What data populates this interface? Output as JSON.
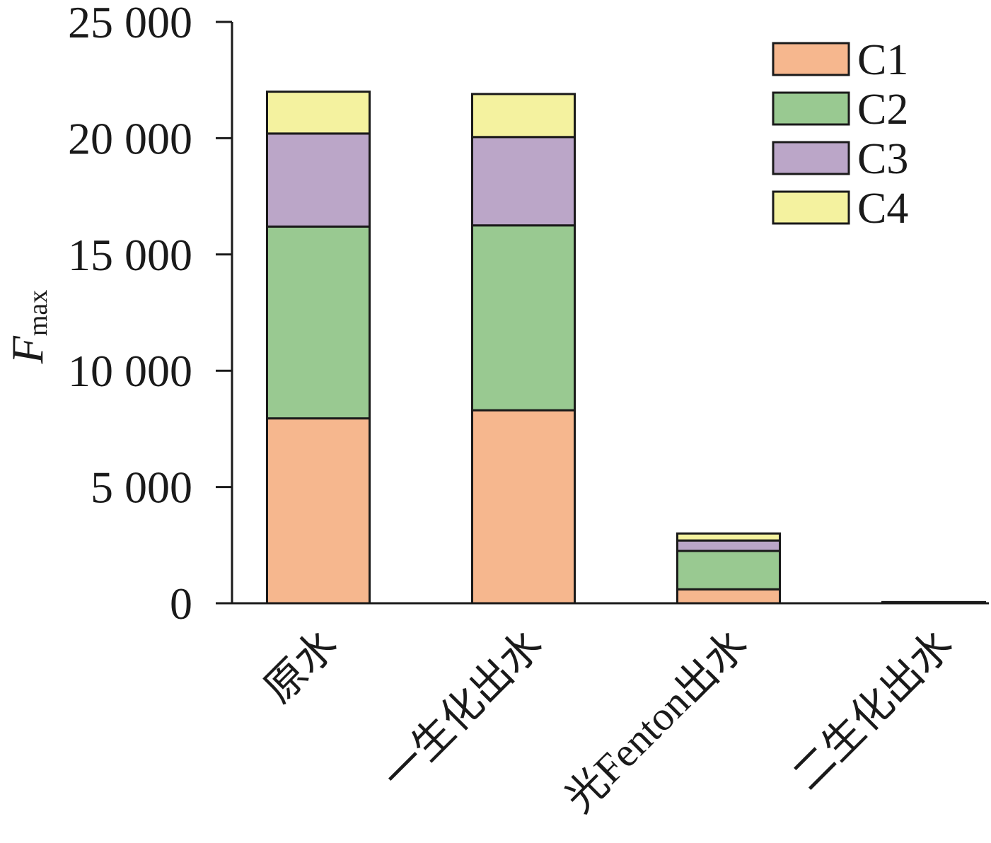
{
  "chart_data": {
    "type": "bar",
    "stacked": true,
    "categories": [
      "原水",
      "一生化出水",
      "光Fenton出水",
      "二生化出水"
    ],
    "series": [
      {
        "name": "C1",
        "color": "#F6B78E",
        "values": [
          7950,
          8300,
          600,
          20
        ]
      },
      {
        "name": "C2",
        "color": "#99C991",
        "values": [
          8250,
          7950,
          1650,
          15
        ]
      },
      {
        "name": "C3",
        "color": "#BBA6C8",
        "values": [
          4000,
          3800,
          450,
          10
        ]
      },
      {
        "name": "C4",
        "color": "#F4F29F",
        "values": [
          1800,
          1850,
          300,
          5
        ]
      }
    ],
    "ylabel": "F",
    "ylabel_sub": "max",
    "xlabel": "",
    "ylim": [
      0,
      25000
    ],
    "yticks": [
      0,
      5000,
      10000,
      15000,
      20000,
      25000
    ],
    "ytick_labels": [
      "0",
      "5 000",
      "10 000",
      "15 000",
      "20 000",
      "25 000"
    ],
    "legend": "top-right",
    "grid": false
  }
}
